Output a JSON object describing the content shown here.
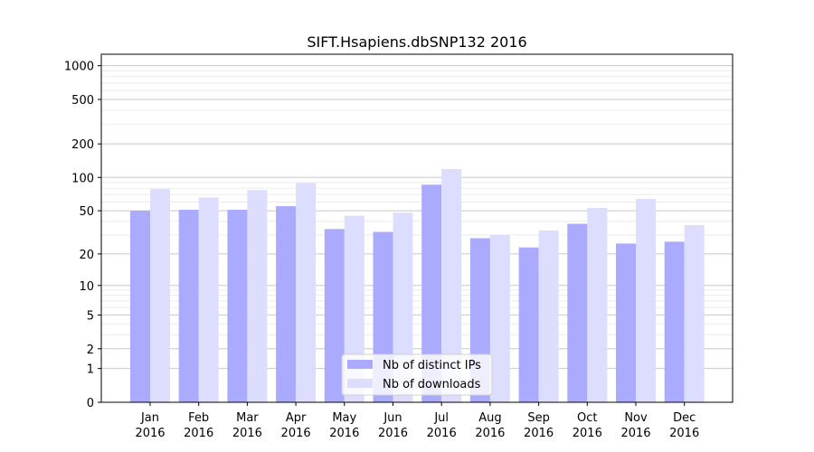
{
  "chart_data": {
    "type": "bar",
    "title": "SIFT.Hsapiens.dbSNP132 2016",
    "xlabel": "",
    "ylabel": "",
    "yscale": "symlog",
    "ylim": [
      0,
      1200
    ],
    "yticks": [
      0,
      1,
      2,
      5,
      10,
      20,
      50,
      100,
      200,
      500,
      1000
    ],
    "grid": true,
    "legend_position": "bottom-center",
    "categories": [
      "Jan\n2016",
      "Feb\n2016",
      "Mar\n2016",
      "Apr\n2016",
      "May\n2016",
      "Jun\n2016",
      "Jul\n2016",
      "Aug\n2016",
      "Sep\n2016",
      "Oct\n2016",
      "Nov\n2016",
      "Dec\n2016"
    ],
    "series": [
      {
        "name": "Nb of distinct IPs",
        "color": "#aaaaff",
        "values": [
          50,
          51,
          51,
          55,
          34,
          32,
          86,
          28,
          23,
          38,
          25,
          26
        ]
      },
      {
        "name": "Nb of downloads",
        "color": "#ddddff",
        "values": [
          79,
          66,
          77,
          89,
          45,
          48,
          119,
          30,
          33,
          53,
          64,
          37
        ]
      }
    ]
  }
}
